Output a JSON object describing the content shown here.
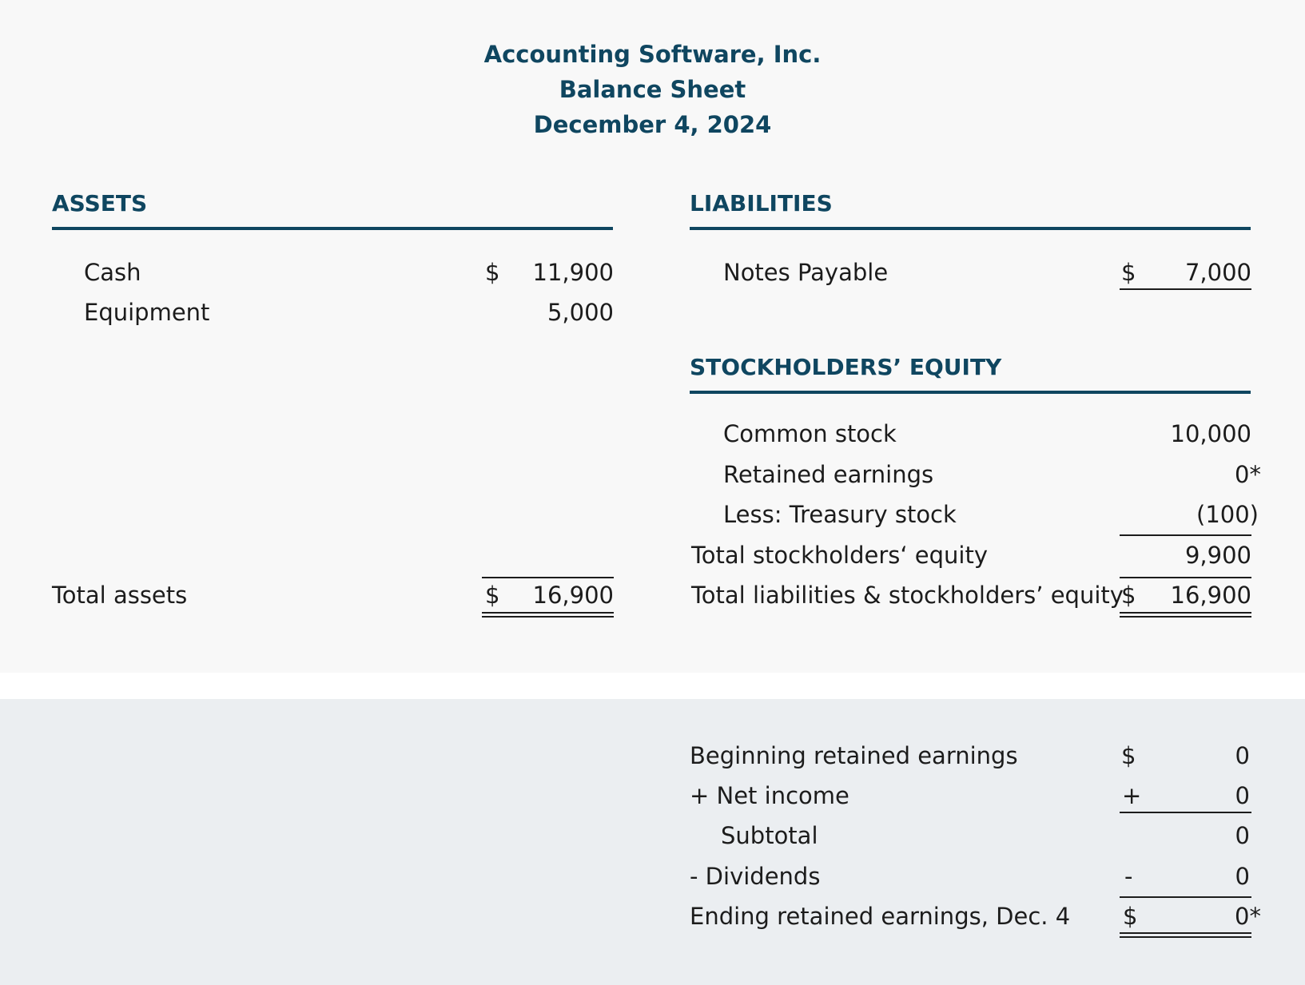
{
  "header": {
    "company": "Accounting Software, Inc.",
    "report": "Balance Sheet",
    "date": "December 4, 2024"
  },
  "assets": {
    "title": "ASSETS",
    "cash_label": "Cash",
    "cash_currency": "$",
    "cash_value": "11,900",
    "equipment_label": "Equipment",
    "equipment_value": "5,000",
    "total_label": "Total assets",
    "total_currency": "$",
    "total_value": "16,900"
  },
  "liabilities": {
    "title": "LIABILITIES",
    "notes_label": "Notes Payable",
    "notes_currency": "$",
    "notes_value": "7,000"
  },
  "equity": {
    "title": "STOCKHOLDERS’ EQUITY",
    "common_label": "Common stock",
    "common_value": "10,000",
    "retained_label": "Retained earnings",
    "retained_value": "0*",
    "treasury_label": "Less: Treasury stock",
    "treasury_value": "(100)",
    "total_label": "Total stockholders‘ equity",
    "total_value": "9,900",
    "grand_label": "Total liabilities & stockholders’ equity",
    "grand_currency": "$",
    "grand_value": "16,900"
  },
  "retained_schedule": {
    "beginning_label": "Beginning retained earnings",
    "beginning_sign": "$",
    "beginning_value": "0",
    "net_income_label": "+ Net income",
    "net_income_sign": "+",
    "net_income_value": "0",
    "subtotal_label": "Subtotal",
    "subtotal_value": "0",
    "dividends_label": "- Dividends",
    "dividends_sign": "-",
    "dividends_value": "0",
    "ending_label": "Ending retained earnings, Dec. 4",
    "ending_sign": "$",
    "ending_value": "0*"
  }
}
